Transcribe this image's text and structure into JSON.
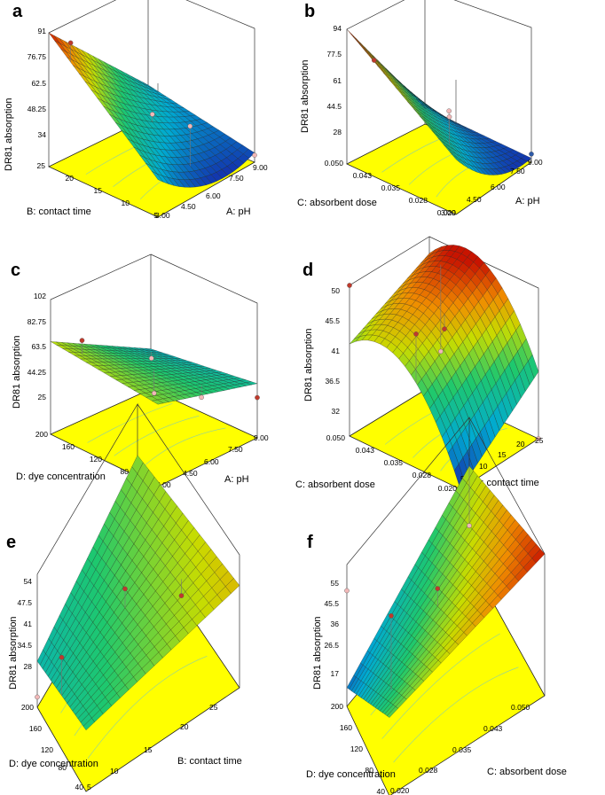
{
  "chart_data": [
    {
      "panel": "a",
      "type": "surface3d",
      "zlabel": "DR81 absorption",
      "zticks": [
        "91",
        "76.75",
        "62.5",
        "48.25",
        "34"
      ],
      "left_axis": {
        "label": "B: contact time",
        "ticks": [
          "25",
          "20",
          "15",
          "10",
          "5"
        ]
      },
      "right_axis": {
        "label": "A: pH",
        "ticks": [
          "3.00",
          "4.50",
          "6.00",
          "7.50",
          "9.00"
        ]
      },
      "zlim": [
        34,
        91
      ],
      "surface": [
        [
          91,
          48
        ],
        [
          50,
          38
        ]
      ],
      "points": [
        {
          "u": 0.2,
          "v": 0.0,
          "z": 91,
          "color": "#c0392b"
        },
        {
          "u": 0.5,
          "v": 0.5,
          "z": 56,
          "color": "#f2b8b8"
        },
        {
          "u": 0.85,
          "v": 0.5,
          "z": 58,
          "color": "#f2b8b8"
        },
        {
          "u": 1.0,
          "v": 1.0,
          "z": 37,
          "color": "#f2b8b8"
        }
      ]
    },
    {
      "panel": "b",
      "type": "surface3d",
      "zlabel": "DR81 absorption",
      "zticks": [
        "94",
        "77.5",
        "61",
        "44.5",
        "28"
      ],
      "left_axis": {
        "label": "C: absorbent dose",
        "ticks": [
          "0.050",
          "0.043",
          "0.035",
          "0.028",
          "0.020"
        ]
      },
      "right_axis": {
        "label": "A: pH",
        "ticks": [
          "3.00",
          "4.50",
          "6.00",
          "7.50",
          "9.00"
        ]
      },
      "zlim": [
        28,
        94
      ],
      "surface": [
        [
          94,
          36
        ],
        [
          55,
          30
        ]
      ],
      "points": [
        {
          "u": 0.25,
          "v": 0.0,
          "z": 85,
          "color": "#c0392b"
        },
        {
          "u": 0.55,
          "v": 0.55,
          "z": 55,
          "color": "#f2b8b8"
        },
        {
          "u": 0.8,
          "v": 0.2,
          "z": 66,
          "color": "#f2b8b8"
        },
        {
          "u": 1.0,
          "v": 1.0,
          "z": 32,
          "color": "#2e5aa8"
        }
      ]
    },
    {
      "panel": "c",
      "type": "surface3d",
      "zlabel": "DR81 absorption",
      "zticks": [
        "102",
        "82.75",
        "63.5",
        "44.25",
        "25"
      ],
      "left_axis": {
        "label": "D: dye concentration",
        "ticks": [
          "200",
          "160",
          "120",
          "80",
          "40"
        ]
      },
      "right_axis": {
        "label": "A: pH",
        "ticks": [
          "3.00",
          "4.50",
          "6.00",
          "7.50",
          "9.00"
        ]
      },
      "zlim": [
        25,
        102
      ],
      "surface": [
        [
          78,
          48
        ],
        [
          72,
          56
        ]
      ],
      "points": [
        {
          "u": 0.2,
          "v": 0.1,
          "z": 82,
          "color": "#c0392b"
        },
        {
          "u": 0.5,
          "v": 0.5,
          "z": 50,
          "color": "#f2b8b8"
        },
        {
          "u": 0.1,
          "v": 0.9,
          "z": 48,
          "color": "#f2b8b8"
        },
        {
          "u": 0.85,
          "v": 0.6,
          "z": 55,
          "color": "#f2b8b8"
        },
        {
          "u": 1.0,
          "v": 1.0,
          "z": 48,
          "color": "#c0392b"
        }
      ]
    },
    {
      "panel": "d",
      "type": "surface3d",
      "zlabel": "DR81 absorption",
      "zticks": [
        "50",
        "45.5",
        "41",
        "36.5",
        "32"
      ],
      "left_axis": {
        "label": "C: absorbent dose",
        "ticks": [
          "0.050",
          "0.043",
          "0.035",
          "0.028",
          "0.020"
        ]
      },
      "right_axis": {
        "label": "B: contact time",
        "ticks": [
          "5",
          "10",
          "15",
          "20",
          "25"
        ]
      },
      "zlim": [
        32,
        50
      ],
      "surface": [
        [
          43,
          48
        ],
        [
          32,
          40
        ]
      ],
      "points": [
        {
          "u": 0.0,
          "v": 0.0,
          "z": 50,
          "color": "#c0392b"
        },
        {
          "u": 0.5,
          "v": 0.5,
          "z": 45,
          "color": "#c0392b"
        },
        {
          "u": 0.6,
          "v": 0.0,
          "z": 48,
          "color": "#c0392b"
        },
        {
          "u": 0.25,
          "v": 0.8,
          "z": 39,
          "color": "#f2b8b8"
        },
        {
          "u": 1.0,
          "v": 1.0,
          "z": 32,
          "color": "#f2b8b8"
        }
      ]
    },
    {
      "panel": "e",
      "type": "surface3d",
      "zlabel": "DR81 absorption",
      "zticks": [
        "54",
        "47.5",
        "41",
        "34.5",
        "28"
      ],
      "left_axis": {
        "label": "D: dye concentration",
        "ticks": [
          "200",
          "160",
          "120",
          "80",
          "40"
        ]
      },
      "right_axis": {
        "label": "B: contact time",
        "ticks": [
          "5",
          "10",
          "15",
          "20",
          "25"
        ]
      },
      "zlim": [
        28,
        54
      ],
      "surface": [
        [
          37,
          44
        ],
        [
          40,
          48
        ]
      ],
      "points": [
        {
          "u": 0.5,
          "v": 0.5,
          "z": 46,
          "color": "#c0392b"
        },
        {
          "u": 0.5,
          "v": 0.0,
          "z": 46,
          "color": "#c0392b"
        },
        {
          "u": 0.7,
          "v": 0.8,
          "z": 42,
          "color": "#c0392b"
        },
        {
          "u": 0.0,
          "v": 0.0,
          "z": 30,
          "color": "#f2b8b8"
        }
      ]
    },
    {
      "panel": "f",
      "type": "surface3d",
      "zlabel": "DR81 absorption",
      "zticks": [
        "55",
        "45.5",
        "36",
        "26.5",
        "17"
      ],
      "left_axis": {
        "label": "D: dye concentration",
        "ticks": [
          "200",
          "160",
          "120",
          "80",
          "40"
        ]
      },
      "right_axis": {
        "label": "C: absorbent dose",
        "ticks": [
          "0.020",
          "0.028",
          "0.035",
          "0.043",
          "0.050"
        ]
      },
      "zlim": [
        17,
        55
      ],
      "surface": [
        [
          22,
          42
        ],
        [
          38,
          55
        ]
      ],
      "points": [
        {
          "u": 0.0,
          "v": 0.0,
          "z": 48,
          "color": "#f2b8b8"
        },
        {
          "u": 0.5,
          "v": 0.5,
          "z": 44,
          "color": "#c0392b"
        },
        {
          "u": 0.7,
          "v": 0.1,
          "z": 55,
          "color": "#c0392b"
        },
        {
          "u": 0.0,
          "v": 1.0,
          "z": 26,
          "color": "#f2b8b8"
        }
      ]
    }
  ]
}
